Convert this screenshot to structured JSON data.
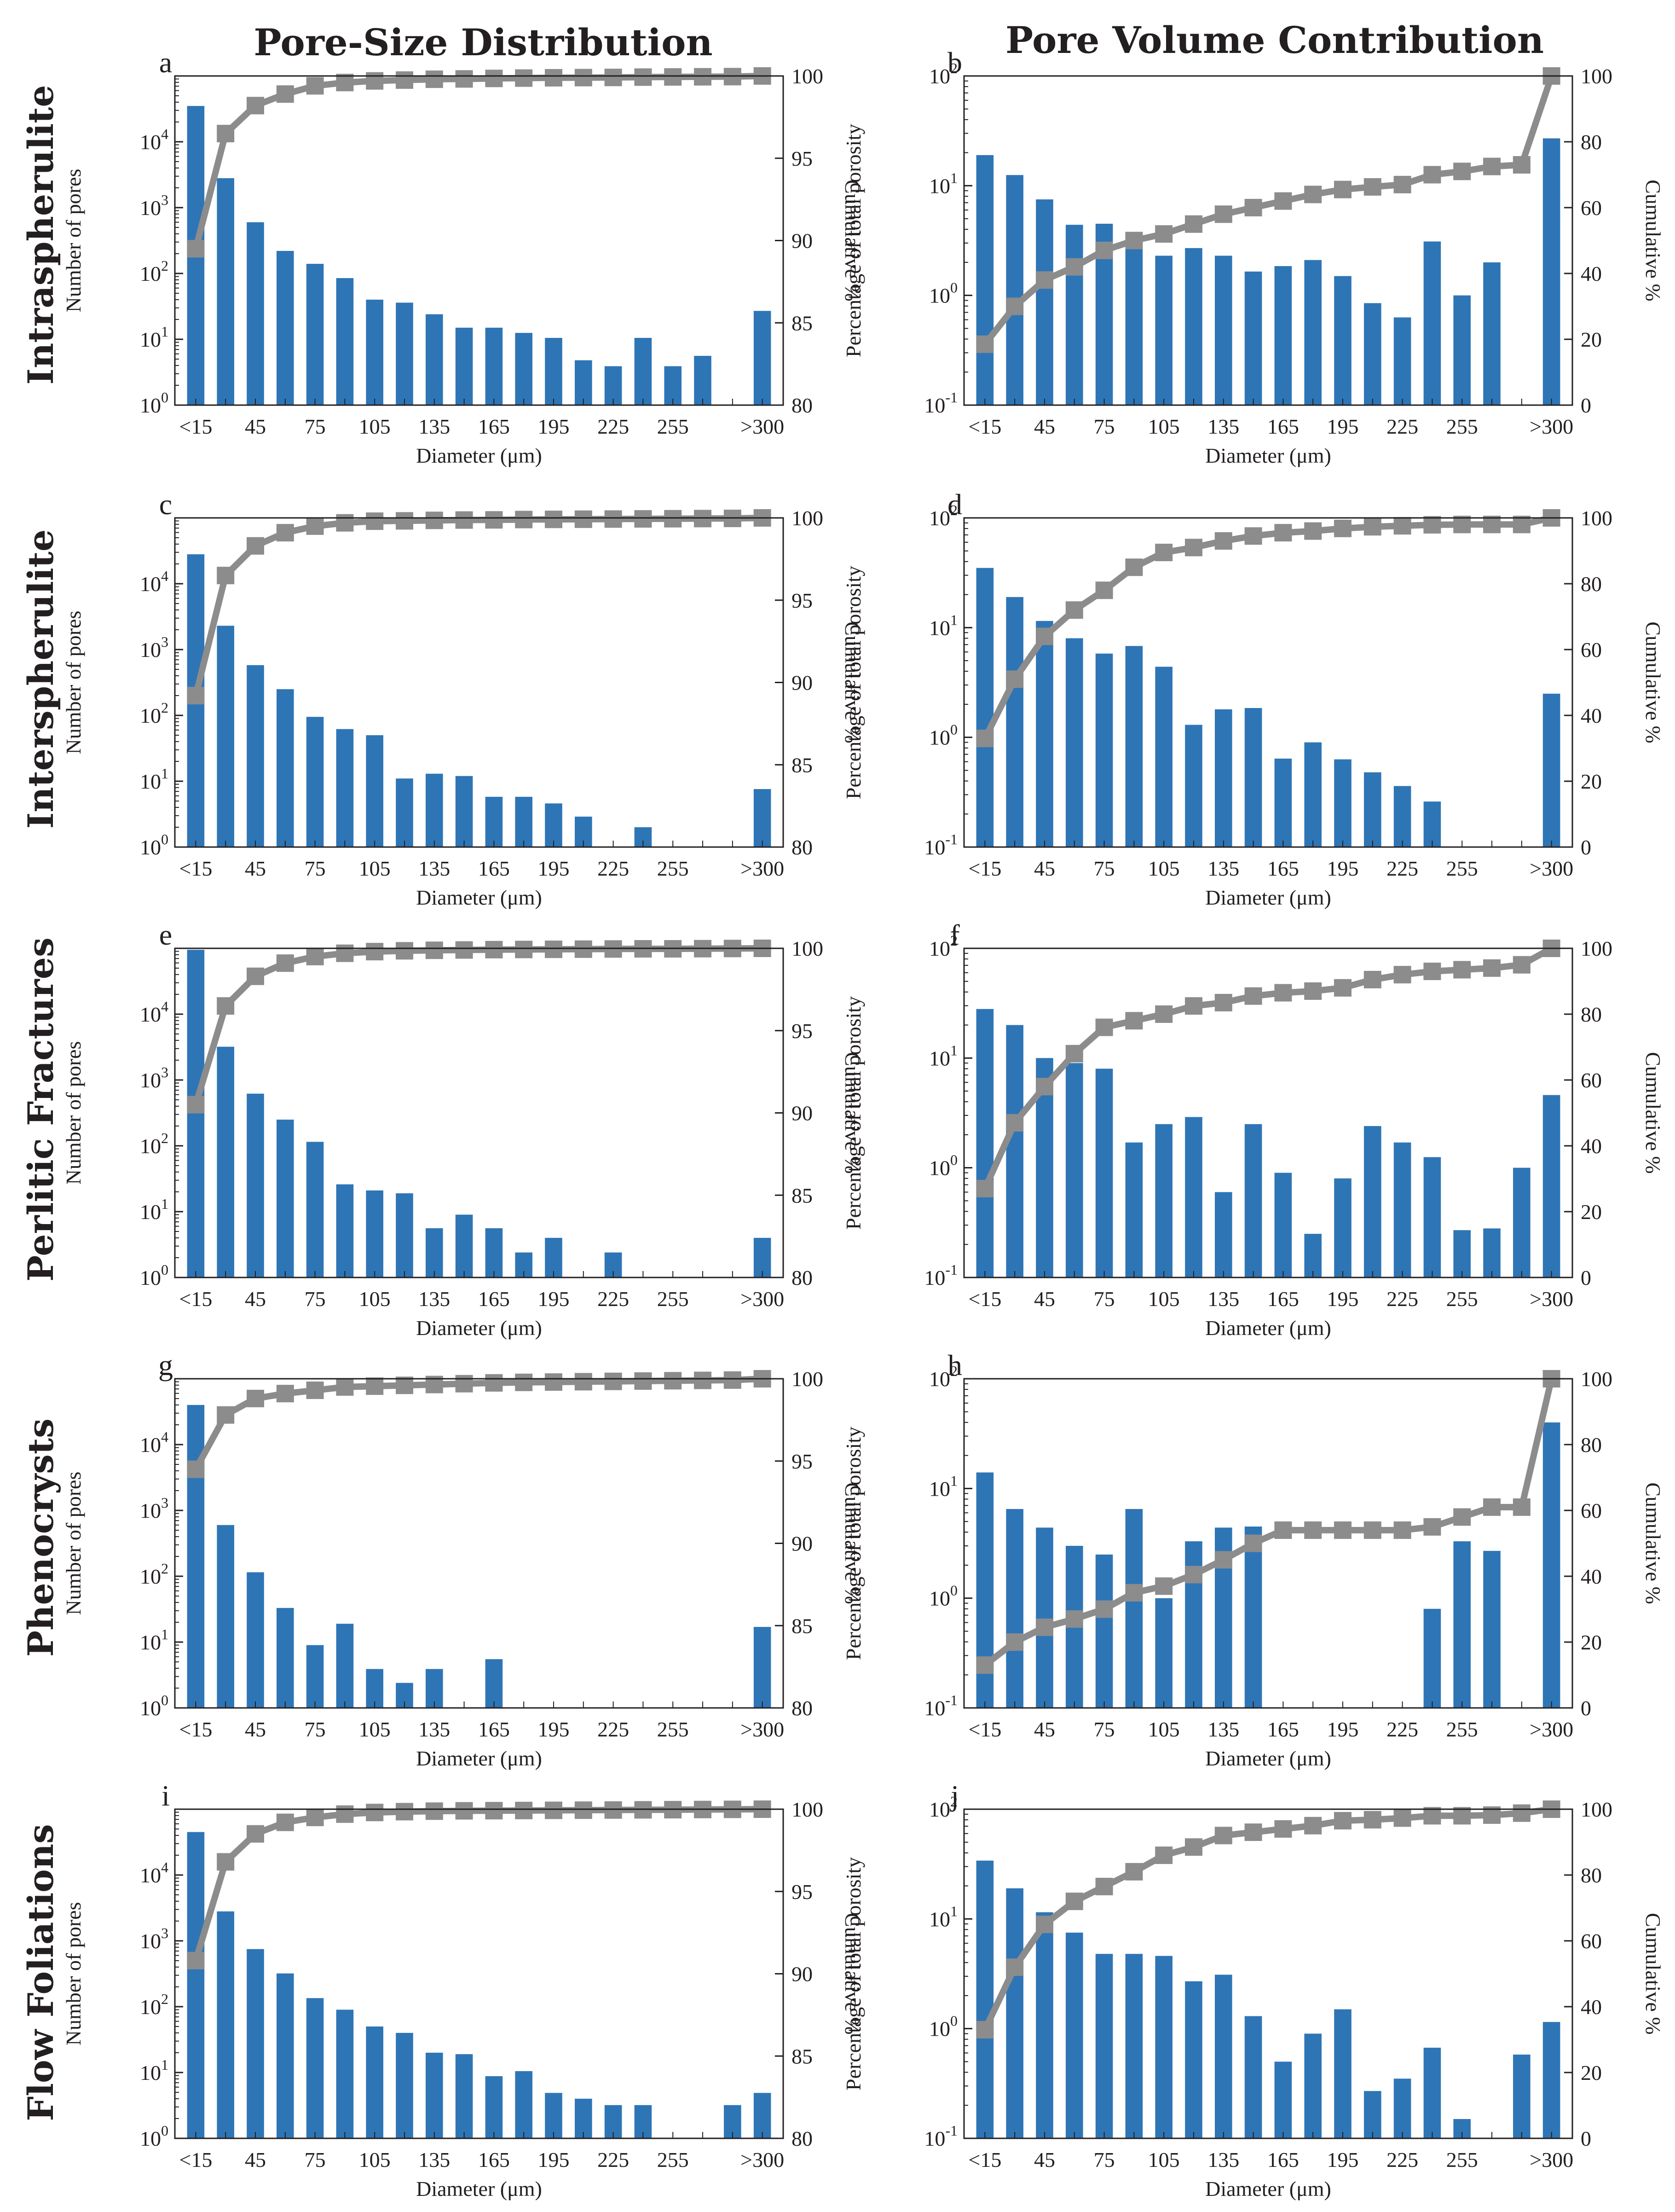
{
  "titles": {
    "left_column": "Pore-Size Distribution",
    "right_column": "Pore Volume Contribution"
  },
  "rows": [
    "Intraspherulite",
    "Interspherulite",
    "Perlitic Fractures",
    "Phenocrysts",
    "Flow Foliations"
  ],
  "colors": {
    "bar": "#2e75b6",
    "line": "#8c8c8c",
    "marker": "#8c8c8c",
    "axis": "#231f20",
    "text": "#231f20"
  },
  "chart_data": [
    {
      "panel": "a",
      "type": "bar",
      "row": "Intraspherulite",
      "title": "Pore-Size Distribution",
      "xlabel": "Diameter (μm)",
      "ylabel": "Number of pores",
      "y2label": "Cumulative %",
      "yscale": "log",
      "ylim": [
        1,
        100000
      ],
      "y2lim": [
        80,
        100
      ],
      "x_tick_labels": [
        "<15",
        "45",
        "75",
        "105",
        "135",
        "165",
        "195",
        "225",
        "255",
        ">300"
      ],
      "y_tick_labels": [
        "10^0",
        "10^1",
        "10^2",
        "10^3",
        "10^4"
      ],
      "y2_tick_labels": [
        "80",
        "85",
        "90",
        "95",
        "100"
      ],
      "series": [
        {
          "name": "Number of pores",
          "axis": "y",
          "kind": "bar",
          "values": [
            35000,
            2800,
            600,
            220,
            140,
            85,
            40,
            36,
            24,
            15,
            15,
            12.5,
            10.5,
            4.8,
            3.9,
            10.5,
            3.9,
            5.6,
            null,
            27
          ]
        },
        {
          "name": "Cumulative %",
          "axis": "y2",
          "kind": "line",
          "values": [
            89.5,
            96.5,
            98.2,
            98.9,
            99.4,
            99.6,
            99.7,
            99.75,
            99.8,
            99.82,
            99.85,
            99.87,
            99.89,
            99.9,
            99.91,
            99.93,
            99.94,
            99.95,
            99.96,
            100
          ]
        }
      ]
    },
    {
      "panel": "b",
      "type": "bar",
      "row": "Intraspherulite",
      "title": "Pore Volume Contribution",
      "xlabel": "Diameter (μm)",
      "ylabel": "Percentage of total porosity",
      "y2label": "Cumulative %",
      "yscale": "log",
      "ylim": [
        0.1,
        100
      ],
      "y2lim": [
        0,
        100
      ],
      "x_tick_labels": [
        "<15",
        "45",
        "75",
        "105",
        "135",
        "165",
        "195",
        "225",
        "255",
        ">300"
      ],
      "y_tick_labels": [
        "10^-1",
        "10^0",
        "10^1",
        "10^2"
      ],
      "y2_tick_labels": [
        "0",
        "20",
        "40",
        "60",
        "80",
        "100"
      ],
      "series": [
        {
          "name": "Percentage of total porosity",
          "axis": "y",
          "kind": "bar",
          "values": [
            19,
            12.5,
            7.5,
            4.4,
            4.5,
            3.5,
            2.3,
            2.7,
            2.3,
            1.65,
            1.85,
            2.1,
            1.5,
            0.85,
            0.63,
            3.1,
            1.0,
            2.0,
            null,
            27
          ]
        },
        {
          "name": "Cumulative %",
          "axis": "y2",
          "kind": "line",
          "values": [
            18.5,
            30,
            38,
            42,
            47,
            50,
            52,
            55,
            58,
            60,
            62,
            64,
            65.5,
            66.3,
            67,
            70,
            71,
            72.5,
            73,
            100
          ]
        }
      ]
    },
    {
      "panel": "c",
      "type": "bar",
      "row": "Interspherulite",
      "title": "Pore-Size Distribution",
      "xlabel": "Diameter (μm)",
      "ylabel": "Number of pores",
      "y2label": "Cumulative %",
      "yscale": "log",
      "ylim": [
        1,
        100000
      ],
      "y2lim": [
        80,
        100
      ],
      "x_tick_labels": [
        "<15",
        "45",
        "75",
        "105",
        "135",
        "165",
        "195",
        "225",
        "255",
        ">300"
      ],
      "y_tick_labels": [
        "10^0",
        "10^1",
        "10^2",
        "10^3",
        "10^4"
      ],
      "y2_tick_labels": [
        "80",
        "85",
        "90",
        "95",
        "100"
      ],
      "series": [
        {
          "name": "Number of pores",
          "axis": "y",
          "kind": "bar",
          "values": [
            28000,
            2300,
            580,
            250,
            95,
            62,
            50,
            11,
            13,
            12,
            5.8,
            5.8,
            4.6,
            2.9,
            null,
            2.0,
            null,
            null,
            null,
            7.6
          ]
        },
        {
          "name": "Cumulative %",
          "axis": "y2",
          "kind": "line",
          "values": [
            89.2,
            96.5,
            98.3,
            99.1,
            99.5,
            99.7,
            99.8,
            99.82,
            99.85,
            99.87,
            99.88,
            99.9,
            99.91,
            99.92,
            99.93,
            99.94,
            99.95,
            99.96,
            99.97,
            100
          ]
        }
      ]
    },
    {
      "panel": "d",
      "type": "bar",
      "row": "Interspherulite",
      "title": "Pore Volume Contribution",
      "xlabel": "Diameter (μm)",
      "ylabel": "Percentage of total porosity",
      "y2label": "Cumulative %",
      "yscale": "log",
      "ylim": [
        0.1,
        100
      ],
      "y2lim": [
        0,
        100
      ],
      "x_tick_labels": [
        "<15",
        "45",
        "75",
        "105",
        "135",
        "165",
        "195",
        "225",
        "255",
        ">300"
      ],
      "y_tick_labels": [
        "10^-1",
        "10^0",
        "10^1",
        "10^2"
      ],
      "y2_tick_labels": [
        "0",
        "20",
        "40",
        "60",
        "80",
        "100"
      ],
      "series": [
        {
          "name": "Percentage of total porosity",
          "axis": "y",
          "kind": "bar",
          "values": [
            35,
            19,
            11.5,
            8,
            5.8,
            6.8,
            4.4,
            1.3,
            1.8,
            1.85,
            0.64,
            0.9,
            0.63,
            0.48,
            0.36,
            0.26,
            null,
            null,
            null,
            2.5
          ]
        },
        {
          "name": "Cumulative %",
          "axis": "y2",
          "kind": "line",
          "values": [
            33,
            51,
            64,
            72,
            78,
            85,
            89.5,
            91,
            93,
            94.5,
            95.5,
            96,
            96.8,
            97.3,
            97.6,
            97.9,
            98,
            98,
            98,
            100
          ]
        }
      ]
    },
    {
      "panel": "e",
      "type": "bar",
      "row": "Perlitic Fractures",
      "title": "Pore-Size Distribution",
      "xlabel": "Diameter (μm)",
      "ylabel": "Number of pores",
      "y2label": "Cumulative %",
      "yscale": "log",
      "ylim": [
        1,
        100000
      ],
      "y2lim": [
        80,
        100
      ],
      "x_tick_labels": [
        "<15",
        "45",
        "75",
        "105",
        "135",
        "165",
        "195",
        "225",
        "255",
        ">300"
      ],
      "y_tick_labels": [
        "10^0",
        "10^1",
        "10^2",
        "10^3",
        "10^4"
      ],
      "y2_tick_labels": [
        "80",
        "85",
        "90",
        "95",
        "100"
      ],
      "series": [
        {
          "name": "Number of pores",
          "axis": "y",
          "kind": "bar",
          "values": [
            95000,
            3200,
            620,
            250,
            115,
            26,
            21,
            19,
            5.6,
            9,
            5.6,
            2.4,
            4,
            null,
            2.4,
            null,
            null,
            null,
            null,
            4
          ]
        },
        {
          "name": "Cumulative %",
          "axis": "y2",
          "kind": "line",
          "values": [
            90.5,
            96.5,
            98.3,
            99.1,
            99.5,
            99.7,
            99.8,
            99.85,
            99.88,
            99.9,
            99.92,
            99.93,
            99.94,
            99.95,
            99.96,
            99.97,
            99.97,
            99.98,
            99.99,
            100
          ]
        }
      ]
    },
    {
      "panel": "f",
      "type": "bar",
      "row": "Perlitic Fractures",
      "title": "Pore Volume Contribution",
      "xlabel": "Diameter (μm)",
      "ylabel": "Percentage of total porosity",
      "y2label": "Cumulative %",
      "yscale": "log",
      "ylim": [
        0.1,
        100
      ],
      "y2lim": [
        0,
        100
      ],
      "x_tick_labels": [
        "<15",
        "45",
        "75",
        "105",
        "135",
        "165",
        "195",
        "225",
        "255",
        ">300"
      ],
      "y_tick_labels": [
        "10^-1",
        "10^0",
        "10^1",
        "10^2"
      ],
      "y2_tick_labels": [
        "0",
        "20",
        "40",
        "60",
        "80",
        "100"
      ],
      "series": [
        {
          "name": "Percentage of total porosity",
          "axis": "y",
          "kind": "bar",
          "values": [
            28,
            20,
            10,
            9,
            8,
            1.7,
            2.5,
            2.9,
            0.6,
            2.5,
            0.9,
            0.25,
            0.8,
            2.4,
            1.7,
            1.25,
            0.27,
            0.28,
            1.0,
            4.6
          ]
        },
        {
          "name": "Cumulative %",
          "axis": "y2",
          "kind": "line",
          "values": [
            27,
            47,
            58,
            68,
            76,
            78,
            80,
            82.5,
            83.5,
            85.5,
            86.5,
            87,
            88,
            90.5,
            92,
            93,
            93.5,
            94,
            95,
            100
          ]
        }
      ]
    },
    {
      "panel": "g",
      "type": "bar",
      "row": "Phenocrysts",
      "title": "Pore-Size Distribution",
      "xlabel": "Diameter (μm)",
      "ylabel": "Number of pores",
      "y2label": "Cumulative %",
      "yscale": "log",
      "ylim": [
        1,
        100000
      ],
      "y2lim": [
        80,
        100
      ],
      "x_tick_labels": [
        "<15",
        "45",
        "75",
        "105",
        "135",
        "165",
        "195",
        "225",
        "255",
        ">300"
      ],
      "y_tick_labels": [
        "10^0",
        "10^1",
        "10^2",
        "10^3",
        "10^4"
      ],
      "y2_tick_labels": [
        "80",
        "85",
        "90",
        "95",
        "100"
      ],
      "series": [
        {
          "name": "Number of pores",
          "axis": "y",
          "kind": "bar",
          "values": [
            40000,
            600,
            115,
            33,
            9,
            19,
            3.9,
            2.4,
            3.9,
            null,
            5.5,
            null,
            null,
            null,
            null,
            null,
            null,
            null,
            null,
            17
          ]
        },
        {
          "name": "Cumulative %",
          "axis": "y2",
          "kind": "line",
          "values": [
            94.5,
            97.8,
            98.8,
            99.1,
            99.3,
            99.5,
            99.55,
            99.6,
            99.65,
            99.7,
            99.75,
            99.78,
            99.8,
            99.82,
            99.84,
            99.86,
            99.88,
            99.9,
            99.92,
            100
          ]
        }
      ]
    },
    {
      "panel": "h",
      "type": "bar",
      "row": "Phenocrysts",
      "title": "Pore Volume Contribution",
      "xlabel": "Diameter (μm)",
      "ylabel": "Percentage of total porosity",
      "y2label": "Cumulative %",
      "yscale": "log",
      "ylim": [
        0.1,
        100
      ],
      "y2lim": [
        0,
        100
      ],
      "x_tick_labels": [
        "<15",
        "45",
        "75",
        "105",
        "135",
        "165",
        "195",
        "225",
        "255",
        ">300"
      ],
      "y_tick_labels": [
        "10^-1",
        "10^0",
        "10^1",
        "10^2"
      ],
      "y2_tick_labels": [
        "0",
        "20",
        "40",
        "60",
        "80",
        "100"
      ],
      "series": [
        {
          "name": "Percentage of total porosity",
          "axis": "y",
          "kind": "bar",
          "values": [
            14,
            6.5,
            4.4,
            3,
            2.5,
            6.5,
            1.0,
            3.3,
            4.4,
            4.5,
            null,
            null,
            null,
            null,
            null,
            0.8,
            3.3,
            2.7,
            null,
            40
          ]
        },
        {
          "name": "Cumulative %",
          "axis": "y2",
          "kind": "line",
          "values": [
            13,
            20,
            24.5,
            27,
            30,
            35,
            37,
            40.5,
            45,
            50,
            54,
            54,
            54,
            54,
            54,
            55,
            58,
            61,
            61,
            100
          ]
        }
      ]
    },
    {
      "panel": "i",
      "type": "bar",
      "row": "Flow Foliations",
      "title": "Pore-Size Distribution",
      "xlabel": "Diameter (μm)",
      "ylabel": "Number of pores",
      "y2label": "Cumulative %",
      "yscale": "log",
      "ylim": [
        1,
        100000
      ],
      "y2lim": [
        80,
        100
      ],
      "x_tick_labels": [
        "<15",
        "45",
        "75",
        "105",
        "135",
        "165",
        "195",
        "225",
        "255",
        ">300"
      ],
      "y_tick_labels": [
        "10^0",
        "10^1",
        "10^2",
        "10^3",
        "10^4"
      ],
      "y2_tick_labels": [
        "80",
        "85",
        "90",
        "95",
        "100"
      ],
      "series": [
        {
          "name": "Number of pores",
          "axis": "y",
          "kind": "bar",
          "values": [
            45000,
            2800,
            750,
            320,
            135,
            90,
            50,
            40,
            20,
            19,
            8.8,
            10.5,
            4.9,
            4,
            3.2,
            3.2,
            null,
            null,
            3.2,
            4.9
          ]
        },
        {
          "name": "Cumulative %",
          "axis": "y2",
          "kind": "line",
          "values": [
            90.8,
            96.8,
            98.5,
            99.2,
            99.5,
            99.7,
            99.8,
            99.85,
            99.88,
            99.9,
            99.91,
            99.92,
            99.93,
            99.94,
            99.95,
            99.96,
            99.97,
            99.98,
            99.99,
            100
          ]
        }
      ]
    },
    {
      "panel": "j",
      "type": "bar",
      "row": "Flow Foliations",
      "title": "Pore Volume Contribution",
      "xlabel": "Diameter (μm)",
      "ylabel": "Percentage of total porosity",
      "y2label": "Cumulative %",
      "yscale": "log",
      "ylim": [
        0.1,
        100
      ],
      "y2lim": [
        0,
        100
      ],
      "x_tick_labels": [
        "<15",
        "45",
        "75",
        "105",
        "135",
        "165",
        "195",
        "225",
        "255",
        ">300"
      ],
      "y_tick_labels": [
        "10^-1",
        "10^0",
        "10^1",
        "10^2"
      ],
      "y2_tick_labels": [
        "0",
        "20",
        "40",
        "60",
        "80",
        "100"
      ],
      "series": [
        {
          "name": "Percentage of total porosity",
          "axis": "y",
          "kind": "bar",
          "values": [
            34,
            19,
            11.5,
            7.5,
            4.8,
            4.8,
            4.6,
            2.7,
            3.1,
            1.3,
            0.5,
            0.9,
            1.5,
            0.27,
            0.35,
            0.67,
            0.15,
            null,
            0.58,
            1.15
          ]
        },
        {
          "name": "Cumulative %",
          "axis": "y2",
          "kind": "line",
          "values": [
            33,
            52,
            65,
            72,
            76.5,
            81,
            86,
            88.5,
            92,
            93,
            94,
            95,
            96.5,
            96.8,
            97.3,
            98,
            98,
            98.2,
            98.8,
            100
          ]
        }
      ]
    }
  ]
}
